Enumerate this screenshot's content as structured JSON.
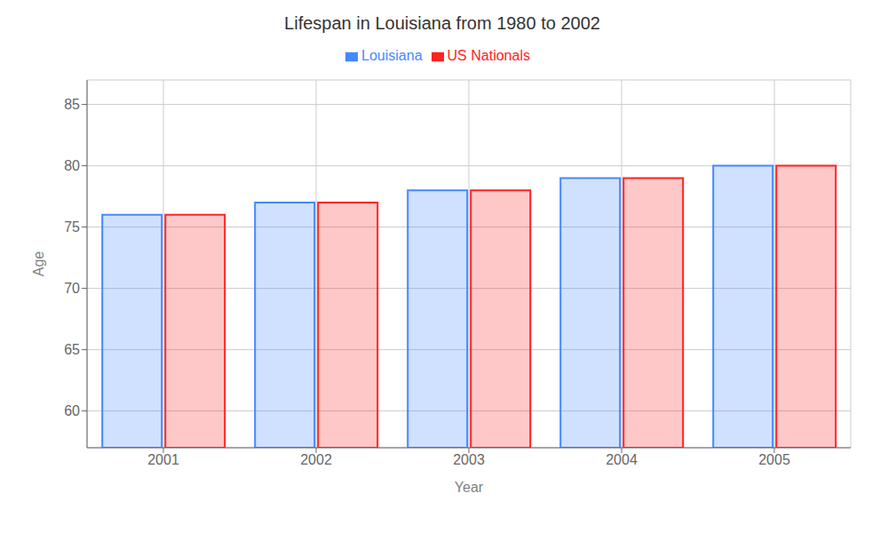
{
  "chart_data": {
    "type": "bar",
    "title": "Lifespan in Louisiana from 1980 to 2002",
    "xlabel": "Year",
    "ylabel": "Age",
    "categories": [
      "2001",
      "2002",
      "2003",
      "2004",
      "2005"
    ],
    "series": [
      {
        "name": "Louisiana",
        "color": "#4488ff",
        "values": [
          76,
          77,
          78,
          79,
          80
        ]
      },
      {
        "name": "US Nationals",
        "color": "#ff2222",
        "values": [
          76,
          77,
          78,
          79,
          80
        ]
      }
    ],
    "ylim": [
      57,
      87
    ],
    "yticks": [
      60,
      65,
      70,
      75,
      80,
      85
    ],
    "grid": true,
    "legend": "top"
  }
}
